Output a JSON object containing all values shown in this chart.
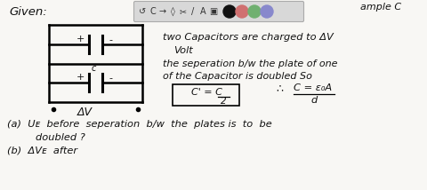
{
  "background_color": "#f0eeea",
  "white_bg": "#f8f7f4",
  "toolbar_bg": "#d8d8d8",
  "toolbar_border": "#aaaaaa",
  "text_color": "#111111",
  "given_text": "Given:",
  "top_right_text": "ample C",
  "line1": "two Capacitors are charged to ΔV",
  "line2": "Volt",
  "line3": "the seperation b/w the plate of one",
  "line4": "of the Capacitor is doubled So",
  "formula_box": "C' = C",
  "formula_denom": "2",
  "therefore_text": "∴",
  "c_eq_text": "C = ε₀A",
  "c_eq_denom": "d",
  "part_a": "(a)  Uᴇ  before  seperation  b/w  the  plates is  to  be",
  "part_a2": "doubled ?",
  "part_b": "(b)  ΔVᴇ  after",
  "toolbar_icons": [
    "↺",
    "C",
    "↗",
    "◊",
    "✂",
    "/",
    "A",
    "▣"
  ],
  "toolbar_colors": [
    "#111111",
    "#d07070",
    "#70b070",
    "#8888cc"
  ],
  "circuit_lw": 1.8,
  "cap_lw": 2.2
}
